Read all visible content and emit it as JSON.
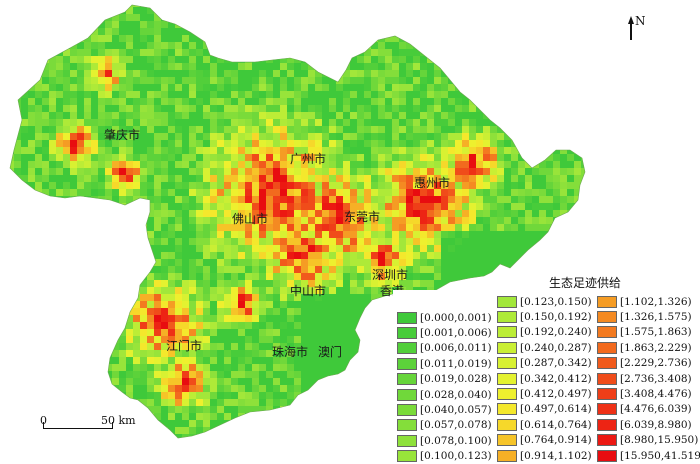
{
  "map": {
    "cities": [
      {
        "name": "肇庆市",
        "id": "zhaoqing"
      },
      {
        "name": "广州市",
        "id": "guangzhou"
      },
      {
        "name": "惠州市",
        "id": "huizhou"
      },
      {
        "name": "佛山市",
        "id": "foshan"
      },
      {
        "name": "东莞市",
        "id": "dongguan"
      },
      {
        "name": "深圳市",
        "id": "shenzhen"
      },
      {
        "name": "香港",
        "id": "hongkong"
      },
      {
        "name": "中山市",
        "id": "zhongshan"
      },
      {
        "name": "江门市",
        "id": "jiangmen"
      },
      {
        "name": "珠海市",
        "id": "zhuhai"
      },
      {
        "name": "澳门",
        "id": "macau"
      }
    ]
  },
  "north_arrow": {
    "letter": "N"
  },
  "scale_bar": {
    "zero": "0",
    "end": "50 km"
  },
  "legend": {
    "title": "生态足迹供给",
    "col1": [
      {
        "label": "[0.000,0.001)",
        "color": "#3fc93a"
      },
      {
        "label": "[0.001,0.006)",
        "color": "#48cc3a"
      },
      {
        "label": "[0.006,0.011)",
        "color": "#52cf3a"
      },
      {
        "label": "[0.011,0.019)",
        "color": "#5cd23a"
      },
      {
        "label": "[0.019,0.028)",
        "color": "#66d53a"
      },
      {
        "label": "[0.028,0.040)",
        "color": "#70d83a"
      },
      {
        "label": "[0.040,0.057)",
        "color": "#7adb3a"
      },
      {
        "label": "[0.057,0.078)",
        "color": "#84de3a"
      },
      {
        "label": "[0.078,0.100)",
        "color": "#8ee13a"
      },
      {
        "label": "[0.100,0.123)",
        "color": "#98e43a"
      }
    ],
    "col2": [
      {
        "label": "[0.123,0.150)",
        "color": "#a2e73a"
      },
      {
        "label": "[0.150,0.192)",
        "color": "#aeea38"
      },
      {
        "label": "[0.192,0.240)",
        "color": "#bced36"
      },
      {
        "label": "[0.240,0.287)",
        "color": "#caef34"
      },
      {
        "label": "[0.287,0.342)",
        "color": "#d8f132"
      },
      {
        "label": "[0.342,0.412)",
        "color": "#e4f230"
      },
      {
        "label": "[0.412,0.497)",
        "color": "#eef02e"
      },
      {
        "label": "[0.497,0.614)",
        "color": "#f4e82c"
      },
      {
        "label": "[0.614,0.764)",
        "color": "#f6d82a"
      },
      {
        "label": "[0.764,0.914)",
        "color": "#f6c428"
      },
      {
        "label": "[0.914,1.102)",
        "color": "#f6b026"
      }
    ],
    "col3": [
      {
        "label": "[1.102,1.326)",
        "color": "#f59c24"
      },
      {
        "label": "[1.326,1.575)",
        "color": "#f48a22"
      },
      {
        "label": "[1.575,1.863)",
        "color": "#f37a20"
      },
      {
        "label": "[1.863,2.229)",
        "color": "#f26a1e"
      },
      {
        "label": "[2.229,2.736)",
        "color": "#f15a1c"
      },
      {
        "label": "[2.736,3.408)",
        "color": "#f04c1a"
      },
      {
        "label": "[3.408,4.476)",
        "color": "#ef3e18"
      },
      {
        "label": "[4.476,6.039)",
        "color": "#ee3016"
      },
      {
        "label": "[6.039,8.980)",
        "color": "#ed2414"
      },
      {
        "label": "[8.980,15.950)",
        "color": "#ec1812"
      },
      {
        "label": "[15.950,41.519]",
        "color": "#e80c10"
      }
    ]
  }
}
